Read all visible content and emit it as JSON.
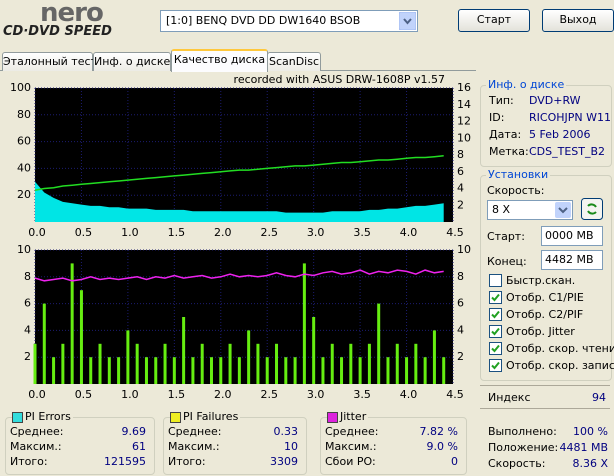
{
  "header": {
    "logo_top": "nero",
    "logo_bottom": "CD·DVD SPEED",
    "drive": "[1:0]  BENQ DVD DD DW1640 BSOB",
    "start": "Старт",
    "exit": "Выход"
  },
  "tabs": [
    "Эталонный тест",
    "Инф. о диске",
    "Качество диска",
    "ScanDisc"
  ],
  "active_tab": 2,
  "chart_top": {
    "type": "line",
    "subtitle": "recorded with ASUS   DRW-1608P   v1.57",
    "x": [
      0,
      0.1,
      0.2,
      0.3,
      0.4,
      0.5,
      0.6,
      0.7,
      0.8,
      0.9,
      1,
      1.1,
      1.2,
      1.3,
      1.4,
      1.5,
      1.6,
      1.7,
      1.8,
      1.9,
      2,
      2.1,
      2.2,
      2.3,
      2.4,
      2.5,
      2.6,
      2.7,
      2.8,
      2.9,
      3,
      3.1,
      3.2,
      3.3,
      3.4,
      3.5,
      3.6,
      3.7,
      3.8,
      3.9,
      4,
      4.1,
      4.2,
      4.3,
      4.4
    ],
    "xlim": [
      0,
      4.5
    ],
    "xticks": [
      {
        "value": 0,
        "label": "0.0"
      },
      0.5,
      {
        "value": 1,
        "label": "1.0"
      },
      1.5,
      {
        "value": 2,
        "label": "2.0"
      },
      2.5,
      {
        "value": 3,
        "label": "3.0"
      },
      3.5,
      {
        "value": 4,
        "label": "4.0"
      },
      4.5
    ],
    "ylim": [
      0,
      100
    ],
    "yticks": [
      20,
      40,
      60,
      80,
      100
    ],
    "y2lim": [
      0,
      16
    ],
    "y2ticks": [
      2,
      4,
      6,
      8,
      10,
      12,
      14,
      16
    ],
    "grid": true,
    "series": [
      {
        "type": "area",
        "color": "#00e5e5",
        "values": [
          30,
          22,
          18,
          15,
          14,
          13,
          12,
          12,
          11,
          11,
          10,
          10,
          10,
          9,
          9,
          9,
          9,
          8,
          8,
          8,
          8,
          8,
          8,
          8,
          8,
          8,
          8,
          7,
          7,
          7,
          7,
          7,
          8,
          8,
          8,
          8,
          9,
          9,
          10,
          10,
          11,
          12,
          12,
          13,
          14
        ]
      },
      {
        "type": "line",
        "color": "#22dd22",
        "axis": "y2",
        "values": [
          3.8,
          4.0,
          4.1,
          4.3,
          4.4,
          4.5,
          4.6,
          4.7,
          4.8,
          4.9,
          5.0,
          5.1,
          5.2,
          5.3,
          5.4,
          5.5,
          5.6,
          5.7,
          5.8,
          5.9,
          6.0,
          6.1,
          6.2,
          6.2,
          6.3,
          6.4,
          6.5,
          6.6,
          6.7,
          6.7,
          6.8,
          6.9,
          7.0,
          7.1,
          7.1,
          7.2,
          7.3,
          7.4,
          7.4,
          7.5,
          7.6,
          7.7,
          7.7,
          7.8,
          7.9
        ]
      }
    ]
  },
  "chart_bottom": {
    "type": "bar",
    "x": [
      0,
      0.1,
      0.2,
      0.3,
      0.4,
      0.5,
      0.6,
      0.7,
      0.8,
      0.9,
      1,
      1.1,
      1.2,
      1.3,
      1.4,
      1.5,
      1.6,
      1.7,
      1.8,
      1.9,
      2,
      2.1,
      2.2,
      2.3,
      2.4,
      2.5,
      2.6,
      2.7,
      2.8,
      2.9,
      3,
      3.1,
      3.2,
      3.3,
      3.4,
      3.5,
      3.6,
      3.7,
      3.8,
      3.9,
      4,
      4.1,
      4.2,
      4.3,
      4.4
    ],
    "xlim": [
      0,
      4.5
    ],
    "xticks": [
      {
        "value": 0,
        "label": "0.0"
      },
      0.5,
      {
        "value": 1,
        "label": "1.0"
      },
      1.5,
      {
        "value": 2,
        "label": "2.0"
      },
      2.5,
      {
        "value": 3,
        "label": "3.0"
      },
      3.5,
      {
        "value": 4,
        "label": "4.0"
      },
      4.5
    ],
    "ylim": [
      0,
      10
    ],
    "yticks": [
      2,
      4,
      6,
      8,
      10
    ],
    "y2lim": [
      0,
      10
    ],
    "y2ticks": [
      2,
      4,
      6,
      8,
      10
    ],
    "grid": true,
    "series": [
      {
        "type": "bar",
        "color": "#66ee11",
        "values": [
          3,
          6,
          2,
          3,
          9,
          7,
          2,
          3,
          2,
          2,
          4,
          3,
          2,
          2,
          3,
          2,
          5,
          2,
          3,
          2,
          2,
          3,
          2,
          4,
          3,
          2,
          3,
          2,
          2,
          9,
          5,
          2,
          3,
          2,
          3,
          2,
          3,
          6,
          2,
          3,
          2,
          3,
          2,
          4,
          2
        ]
      },
      {
        "type": "line",
        "color": "#ee22ee",
        "axis": "y2",
        "values": [
          7.9,
          7.7,
          7.8,
          7.9,
          7.7,
          7.8,
          8.0,
          7.8,
          7.9,
          7.8,
          7.9,
          8.0,
          7.8,
          8.0,
          7.9,
          8.1,
          7.9,
          8.0,
          8.1,
          7.9,
          8.0,
          8.2,
          8.0,
          8.1,
          8.0,
          8.1,
          8.3,
          8.1,
          8.0,
          8.2,
          8.1,
          8.3,
          8.4,
          8.2,
          8.3,
          8.5,
          8.2,
          8.4,
          8.3,
          8.5,
          8.4,
          8.2,
          8.5,
          8.3,
          8.4
        ]
      }
    ]
  },
  "disc_info": {
    "title": "Инф. о диске",
    "rows": [
      [
        "Тип:",
        "DVD+RW"
      ],
      [
        "ID:",
        "RICOHJPN W11"
      ],
      [
        "Дата:",
        "5 Feb 2006"
      ],
      [
        "Метка:",
        "CDS_TEST_B2"
      ]
    ]
  },
  "settings": {
    "title": "Установки",
    "speed_label": "Скорость:",
    "speed": "8 X",
    "start_label": "Старт:",
    "start": "0000 MB",
    "end_label": "Конец:",
    "end": "4482 MB",
    "checkboxes": [
      {
        "label": "Быстр.скан.",
        "checked": false
      },
      {
        "label": "Отобр. C1/PIE",
        "checked": true
      },
      {
        "label": "Отобр. C2/PIF",
        "checked": true
      },
      {
        "label": "Отобр. Jitter",
        "checked": true
      },
      {
        "label": "Отобр. скор. чтения",
        "checked": true
      },
      {
        "label": "Отобр. скор. записи",
        "checked": true
      }
    ]
  },
  "index": {
    "label": "Индекс",
    "value": "94"
  },
  "progress": [
    [
      "Выполнено:",
      "100 %"
    ],
    [
      "Положение:",
      "4481 MB"
    ],
    [
      "Скорость:",
      "8.36 X"
    ]
  ],
  "stats": [
    {
      "title": "PI Errors",
      "color": "#33dddd",
      "rows": [
        [
          "Среднее:",
          "9.69"
        ],
        [
          "Максим.:",
          "61"
        ],
        [
          "Итого:",
          "121595"
        ]
      ]
    },
    {
      "title": "PI Failures",
      "color": "#eeee22",
      "rows": [
        [
          "Среднее:",
          "0.33"
        ],
        [
          "Максим.:",
          "10"
        ],
        [
          "Итого:",
          "3309"
        ]
      ]
    },
    {
      "title": "Jitter",
      "color": "#dd22dd",
      "rows": [
        [
          "Среднее:",
          "7.82 %"
        ],
        [
          "Максим.:",
          "9.0 %"
        ],
        [
          "Сбои PO:",
          "0"
        ]
      ]
    }
  ]
}
